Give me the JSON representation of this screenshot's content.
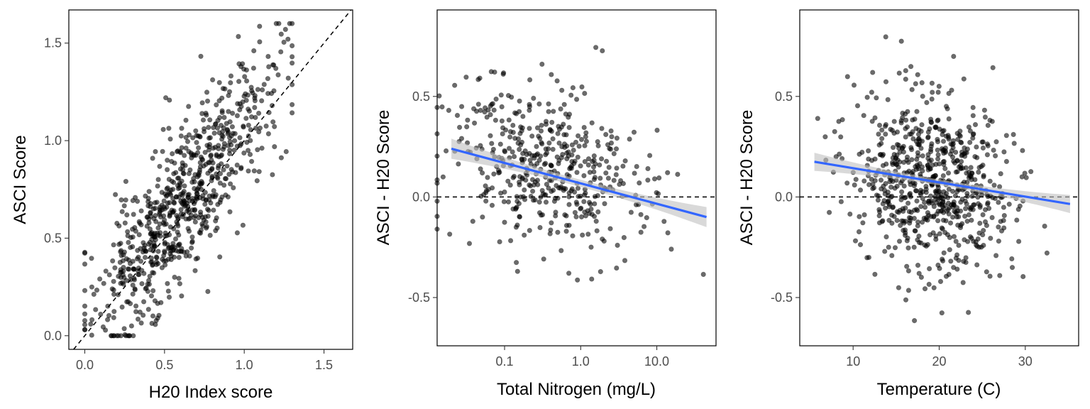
{
  "chart_data": [
    {
      "type": "scatter",
      "xlabel": "H20 Index score",
      "ylabel": "ASCI Score",
      "xlim": [
        -0.1,
        1.68
      ],
      "ylim": [
        -0.07,
        1.67
      ],
      "x_ticks": [
        {
          "value": 0.0,
          "label": "0.0"
        },
        {
          "value": 0.5,
          "label": "0.5"
        },
        {
          "value": 1.0,
          "label": "1.0"
        },
        {
          "value": 1.5,
          "label": "1.5"
        }
      ],
      "y_ticks": [
        {
          "value": 0.0,
          "label": "0.0"
        },
        {
          "value": 0.5,
          "label": "0.5"
        },
        {
          "value": 1.0,
          "label": "1.0"
        },
        {
          "value": 1.5,
          "label": "1.5"
        }
      ],
      "reference_line": {
        "type": "identity",
        "style": "dashed"
      },
      "points": {
        "n": 750,
        "x_center": 0.62,
        "x_sd": 0.28,
        "x_range": [
          0.0,
          1.3
        ],
        "y_intercept": 0.08,
        "y_slope": 1.0,
        "y_sd": 0.2,
        "y_range": [
          0.0,
          1.6
        ],
        "seed": 11
      }
    },
    {
      "type": "scatter",
      "xlabel": "Total Nitrogen (mg/L)",
      "ylabel": "ASCI - H20 Score",
      "x_scale": "log10",
      "xlim": [
        0.013,
        60
      ],
      "ylim": [
        -0.74,
        0.93
      ],
      "x_ticks": [
        {
          "value": 0.1,
          "label": "0.1"
        },
        {
          "value": 1.0,
          "label": "1.0"
        },
        {
          "value": 10.0,
          "label": "10.0"
        }
      ],
      "y_ticks": [
        {
          "value": -0.5,
          "label": "-0.5"
        },
        {
          "value": 0.0,
          "label": "0.0"
        },
        {
          "value": 0.5,
          "label": "0.5"
        }
      ],
      "reference_line": {
        "type": "horizontal",
        "value": 0.0,
        "style": "dashed"
      },
      "trend": {
        "color": "#3366ff",
        "x_start": 0.02,
        "x_end": 45,
        "y_start": 0.24,
        "y_end": -0.1,
        "ci_halfwidth_ends": 0.05,
        "ci_halfwidth_mid": 0.018
      },
      "points": {
        "n": 470,
        "log10x_center": -0.5,
        "log10x_sd": 0.62,
        "x_range": [
          0.013,
          60
        ],
        "y_intercept": 0.1,
        "y_slope_per_log10x": -0.1,
        "y_sd": 0.2,
        "y_range": [
          -0.67,
          0.84
        ],
        "seed": 23
      }
    },
    {
      "type": "scatter",
      "xlabel": "Temperature (C)",
      "ylabel": "ASCI - H20 Score",
      "xlim": [
        3.8,
        36.2
      ],
      "ylim": [
        -0.74,
        0.93
      ],
      "x_ticks": [
        {
          "value": 10,
          "label": "10"
        },
        {
          "value": 20,
          "label": "20"
        },
        {
          "value": 30,
          "label": "30"
        }
      ],
      "y_ticks": [
        {
          "value": -0.5,
          "label": "-0.5"
        },
        {
          "value": 0.0,
          "label": "0.0"
        },
        {
          "value": 0.5,
          "label": "0.5"
        }
      ],
      "reference_line": {
        "type": "horizontal",
        "value": 0.0,
        "style": "dashed"
      },
      "trend": {
        "color": "#3366ff",
        "x_start": 5.5,
        "x_end": 35.2,
        "y_start": 0.175,
        "y_end": -0.035,
        "ci_halfwidth_ends": 0.045,
        "ci_halfwidth_mid": 0.014
      },
      "points": {
        "n": 720,
        "x_center": 19.2,
        "x_sd": 4.6,
        "x_range": [
          5.3,
          35.2
        ],
        "y_intercept": 0.21,
        "y_slope": -0.007,
        "y_sd": 0.22,
        "y_range": [
          -0.67,
          0.84
        ],
        "seed": 37
      }
    }
  ]
}
